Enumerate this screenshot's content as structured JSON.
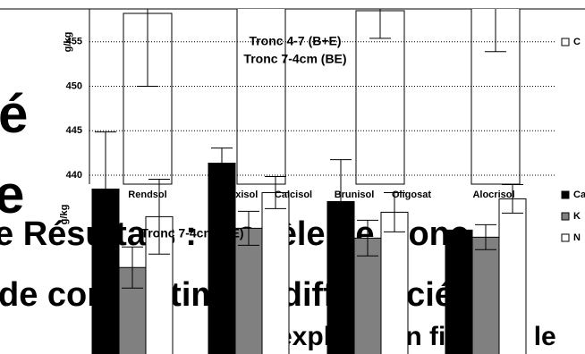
{
  "slide": {
    "lines": [
      "é",
      "e",
      "e Résultats : modèle de tronc",
      "de compartiment différenciée",
      "exploration fine par le"
    ]
  },
  "chart_data": [
    {
      "type": "bar",
      "title": "Tronc 4-7 (B+E)",
      "subtitle": "Tronc 7-4cm (BE)",
      "y_label": "g/kg",
      "categories": [
        "Rendsol",
        "Redoxisol",
        "Calcisol",
        "Brunisol",
        "Oligosat",
        "Alocrisol"
      ],
      "series": [
        {
          "name": "C",
          "color": "#ffffff",
          "values": [
            458.2,
            460,
            null,
            458.5,
            null,
            460
          ],
          "errors": [
            8.2,
            null,
            null,
            3.1,
            null,
            6.1
          ]
        }
      ],
      "ylim": [
        439,
        458.7
      ],
      "yticks": [
        440,
        445,
        450,
        455
      ],
      "grid": true
    },
    {
      "type": "bar",
      "title": "Tronc 7-4cm (BE)",
      "y_label": "g/kg",
      "categories": [
        null,
        null,
        null,
        null
      ],
      "series": [
        {
          "name": "Ca",
          "color": "#000000",
          "values": [
            438.5,
            441.4,
            437.1,
            433.9
          ],
          "errors": [
            6.4,
            1.7,
            4.7,
            null
          ]
        },
        {
          "name": "K",
          "color": "#808080",
          "values": [
            429.7,
            434.1,
            433.0,
            433.1
          ],
          "errors": [
            2.3,
            1.9,
            2.0,
            1.4
          ]
        },
        {
          "name": "N",
          "color": "#ffffff",
          "values": [
            435.4,
            438.1,
            435.9,
            437.4
          ],
          "errors": [
            4.2,
            1.8,
            2.2,
            1.6
          ]
        }
      ],
      "ylim": [
        420,
        458.7
      ],
      "grid": false
    }
  ]
}
